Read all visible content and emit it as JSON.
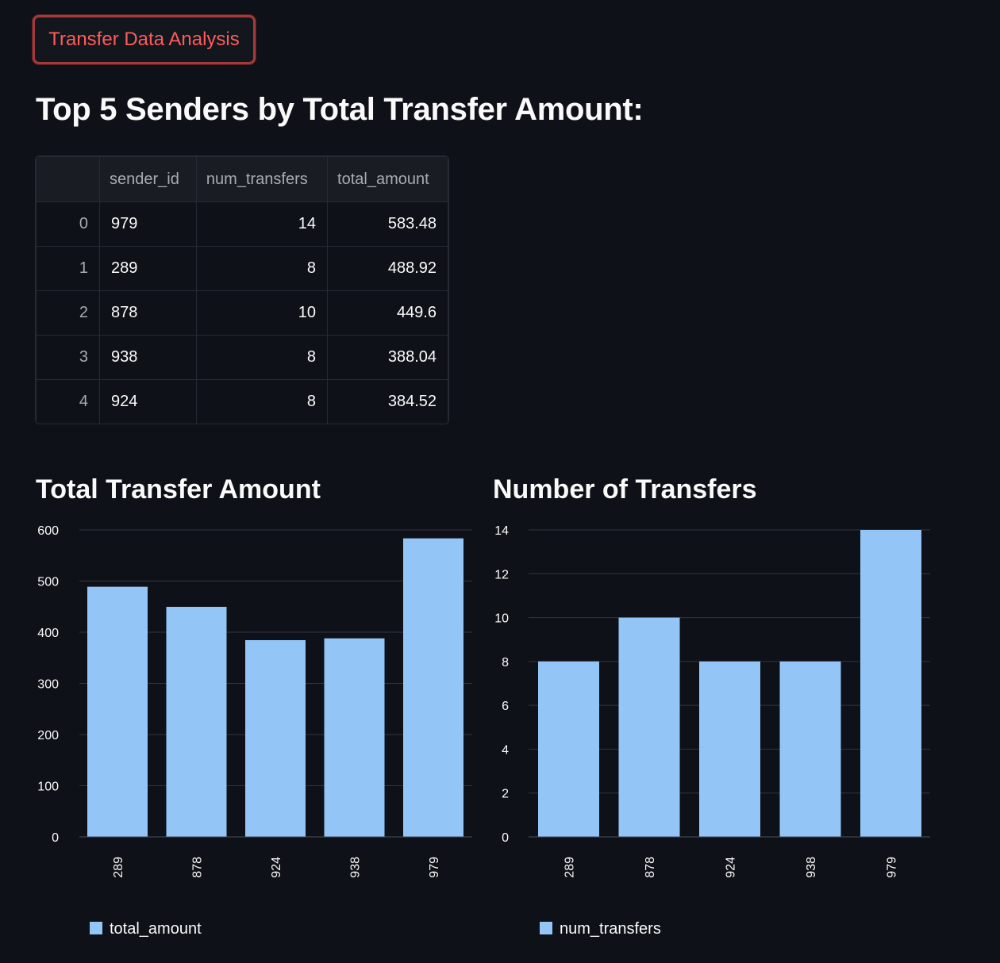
{
  "header": {
    "button_label": "Transfer Data Analysis"
  },
  "page_title": "Top 5 Senders by Total Transfer Amount:",
  "table": {
    "columns": [
      "",
      "sender_id",
      "num_transfers",
      "total_amount"
    ],
    "rows": [
      {
        "index": "0",
        "sender_id": "979",
        "num_transfers": "14",
        "total_amount": "583.48"
      },
      {
        "index": "1",
        "sender_id": "289",
        "num_transfers": "8",
        "total_amount": "488.92"
      },
      {
        "index": "2",
        "sender_id": "878",
        "num_transfers": "10",
        "total_amount": "449.6"
      },
      {
        "index": "3",
        "sender_id": "938",
        "num_transfers": "8",
        "total_amount": "388.04"
      },
      {
        "index": "4",
        "sender_id": "924",
        "num_transfers": "8",
        "total_amount": "384.52"
      }
    ]
  },
  "charts": {
    "amount_title": "Total Transfer Amount",
    "count_title": "Number of Transfers"
  },
  "colors": {
    "bar": "#93c5f7",
    "grid": "#31353f",
    "accent": "#ff5c5c"
  },
  "chart_data": [
    {
      "type": "bar",
      "title": "Total Transfer Amount",
      "categories": [
        "289",
        "878",
        "924",
        "938",
        "979"
      ],
      "series": [
        {
          "name": "total_amount",
          "values": [
            488.92,
            449.6,
            384.52,
            388.04,
            583.48
          ]
        }
      ],
      "ylim": [
        0,
        600
      ],
      "yticks": [
        0,
        100,
        200,
        300,
        400,
        500,
        600
      ],
      "legend": "bottom-left",
      "grid": true
    },
    {
      "type": "bar",
      "title": "Number of Transfers",
      "categories": [
        "289",
        "878",
        "924",
        "938",
        "979"
      ],
      "series": [
        {
          "name": "num_transfers",
          "values": [
            8,
            10,
            8,
            8,
            14
          ]
        }
      ],
      "ylim": [
        0,
        14
      ],
      "yticks": [
        0,
        2,
        4,
        6,
        8,
        10,
        12,
        14
      ],
      "legend": "bottom-left",
      "grid": true
    }
  ]
}
